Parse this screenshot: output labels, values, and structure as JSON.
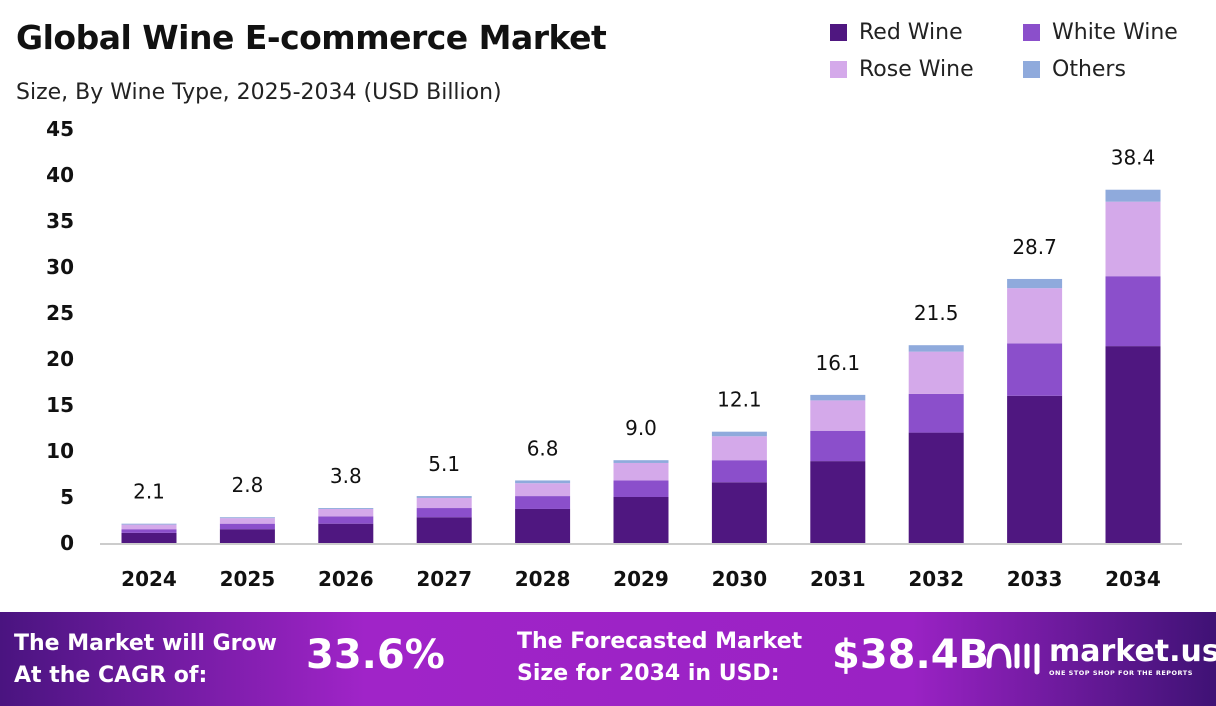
{
  "chart_data": {
    "type": "bar",
    "stacked": true,
    "title": "Global Wine E-commerce Market",
    "subtitle": "Size, By Wine Type, 2025-2034 (USD Billion)",
    "categories": [
      "2024",
      "2025",
      "2026",
      "2027",
      "2028",
      "2029",
      "2030",
      "2031",
      "2032",
      "2033",
      "2034"
    ],
    "series": [
      {
        "name": "Red Wine",
        "color": "#4f1780",
        "values": [
          1.1,
          1.5,
          2.1,
          2.8,
          3.7,
          5.0,
          6.6,
          8.9,
          12.0,
          16.0,
          21.4
        ]
      },
      {
        "name": "White Wine",
        "color": "#8b4fcb",
        "values": [
          0.4,
          0.6,
          0.8,
          1.0,
          1.4,
          1.8,
          2.4,
          3.3,
          4.2,
          5.7,
          7.6
        ]
      },
      {
        "name": "Rose Wine",
        "color": "#d4a9ea",
        "values": [
          0.5,
          0.6,
          0.8,
          1.1,
          1.4,
          1.9,
          2.6,
          3.3,
          4.6,
          6.0,
          8.1
        ]
      },
      {
        "name": "Others",
        "color": "#8faadc",
        "values": [
          0.1,
          0.1,
          0.1,
          0.2,
          0.3,
          0.3,
          0.5,
          0.6,
          0.7,
          1.0,
          1.3
        ]
      }
    ],
    "totals": [
      "2.1",
      "2.8",
      "3.8",
      "5.1",
      "6.8",
      "9.0",
      "12.1",
      "16.1",
      "21.5",
      "28.7",
      "38.4"
    ],
    "yticks": [
      "0",
      "5",
      "10",
      "15",
      "20",
      "25",
      "30",
      "35",
      "40",
      "45"
    ],
    "ylim": [
      0,
      45
    ],
    "grid": false,
    "legend": "top-right"
  },
  "footer": {
    "cagr_label_1": "The Market will Grow",
    "cagr_label_2": "At the CAGR of:",
    "cagr_value": "33.6%",
    "forecast_label_1": "The Forecasted Market",
    "forecast_label_2": "Size for 2034 in USD:",
    "forecast_value": "$38.4B",
    "logo_name": "market.us",
    "logo_tagline": "ONE STOP SHOP FOR THE REPORTS"
  }
}
